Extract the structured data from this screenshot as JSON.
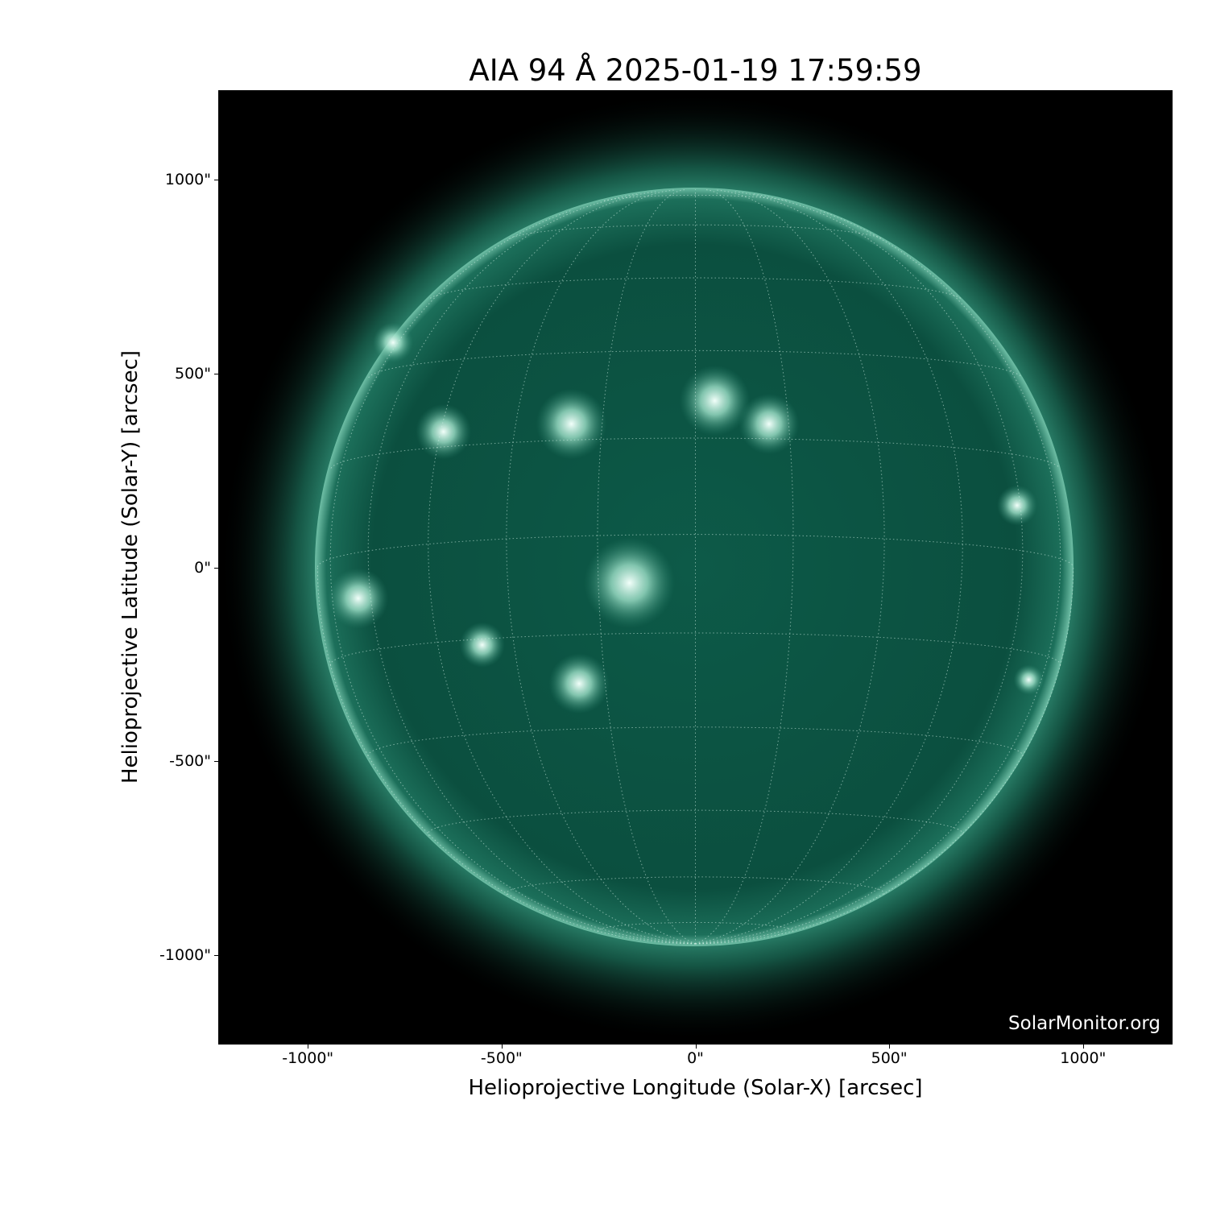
{
  "chart_data": {
    "type": "image",
    "title": "AIA 94 Å 2025-01-19 17:59:59",
    "xlabel": "Helioprojective Longitude (Solar-X) [arcsec]",
    "ylabel": "Helioprojective Latitude (Solar-Y) [arcsec]",
    "xlim": [
      -1229,
      1229
    ],
    "ylim": [
      -1229,
      1229
    ],
    "xticks": [
      {
        "value": -1000,
        "label": "-1000\""
      },
      {
        "value": -500,
        "label": "-500\""
      },
      {
        "value": 0,
        "label": "0\""
      },
      {
        "value": 500,
        "label": "500\""
      },
      {
        "value": 1000,
        "label": "1000\""
      }
    ],
    "yticks": [
      {
        "value": 1000,
        "label": "1000\""
      },
      {
        "value": 500,
        "label": "500\""
      },
      {
        "value": 0,
        "label": "0\""
      },
      {
        "value": -500,
        "label": "-500\""
      },
      {
        "value": -1000,
        "label": "-1000\""
      }
    ],
    "solar_radius_arcsec": 975,
    "grid": "heliographic, 15° spacing, dotted white",
    "colormap": "sdoaia94",
    "colors": {
      "background": "#000000",
      "disk": "#0d5a48",
      "bright": "#e8fff6"
    },
    "watermark": "SolarMonitor.org"
  }
}
